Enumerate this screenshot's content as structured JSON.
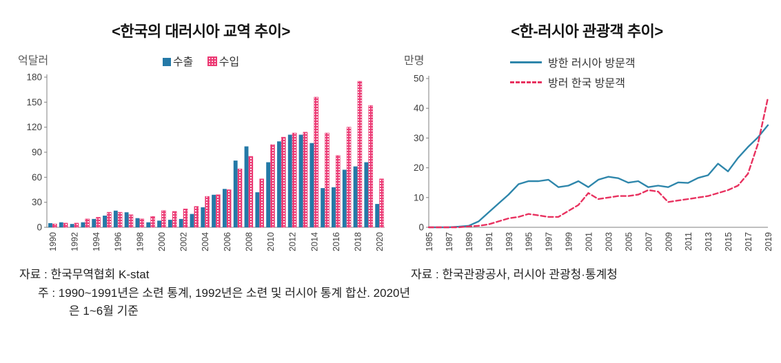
{
  "accent_colors": {
    "export_blue": "#2479a7",
    "import_pink": "#ec3a74",
    "line_blue": "#2e86ab",
    "line_pink": "#e8315f"
  },
  "chart_data": [
    {
      "type": "bar",
      "title": "<한국의 대러시아 교역 추이>",
      "unit": "억달러",
      "xlabel": "",
      "ylabel": "억달러",
      "ylim": [
        0,
        180
      ],
      "yticks": [
        0,
        30,
        60,
        90,
        120,
        150,
        180
      ],
      "grid": false,
      "legend_position": "top-center",
      "categories": [
        "1990",
        "1991",
        "1992",
        "1993",
        "1994",
        "1995",
        "1996",
        "1997",
        "1998",
        "1999",
        "2000",
        "2001",
        "2002",
        "2003",
        "2004",
        "2005",
        "2006",
        "2007",
        "2008",
        "2009",
        "2010",
        "2011",
        "2012",
        "2013",
        "2014",
        "2015",
        "2016",
        "2017",
        "2018",
        "2019",
        "2020"
      ],
      "xtick_labels": [
        "1990",
        "1992",
        "1994",
        "1996",
        "1998",
        "2000",
        "2002",
        "2004",
        "2006",
        "2008",
        "2010",
        "2012",
        "2014",
        "2016",
        "2018",
        "2020"
      ],
      "series": [
        {
          "name": "수출",
          "color": "#2479a7",
          "pattern": "solid",
          "values": [
            5,
            6,
            4,
            6,
            10,
            14,
            20,
            18,
            11,
            6,
            8,
            9,
            10,
            16,
            24,
            39,
            46,
            80,
            97,
            42,
            78,
            103,
            111,
            111,
            101,
            47,
            48,
            69,
            73,
            78,
            28
          ]
        },
        {
          "name": "수입",
          "color": "#ec3a74",
          "pattern": "dotted",
          "values": [
            4,
            5,
            5,
            10,
            12,
            18,
            18,
            15,
            10,
            13,
            20,
            19,
            22,
            25,
            37,
            39,
            45,
            70,
            85,
            58,
            99,
            108,
            113,
            114,
            156,
            113,
            86,
            120,
            175,
            146,
            58
          ]
        }
      ],
      "source": "자료 : 한국무역협회 K-stat",
      "note": "주 : 1990~1991년은 소련 통계, 1992년은 소련 및 러시아 통계 합산. 2020년은 1~6월 기준"
    },
    {
      "type": "line",
      "title": "<한-러시아 관광객 추이>",
      "unit": "만명",
      "xlabel": "",
      "ylabel": "만명",
      "ylim": [
        0,
        50
      ],
      "yticks": [
        0,
        10,
        20,
        30,
        40,
        50
      ],
      "grid": false,
      "legend_position": "top-center",
      "categories": [
        "1985",
        "1986",
        "1987",
        "1988",
        "1989",
        "1990",
        "1991",
        "1992",
        "1993",
        "1994",
        "1995",
        "1996",
        "1997",
        "1998",
        "1999",
        "2000",
        "2001",
        "2002",
        "2003",
        "2004",
        "2005",
        "2006",
        "2007",
        "2008",
        "2009",
        "2010",
        "2011",
        "2012",
        "2013",
        "2014",
        "2015",
        "2016",
        "2017",
        "2018",
        "2019"
      ],
      "xtick_labels": [
        "1985",
        "1987",
        "1989",
        "1991",
        "1993",
        "1995",
        "1997",
        "1999",
        "2001",
        "2003",
        "2005",
        "2007",
        "2009",
        "2011",
        "2013",
        "2015",
        "2017",
        "2019"
      ],
      "series": [
        {
          "name": "방한 러시아 방문객",
          "color": "#2e86ab",
          "style": "solid",
          "values": [
            0,
            0,
            0,
            0.2,
            0.5,
            2,
            5,
            8,
            11,
            14.5,
            15.5,
            15.5,
            16,
            13.5,
            14,
            15.5,
            13.5,
            16,
            17,
            16.5,
            15,
            15.5,
            13.5,
            14,
            13.5,
            15.1,
            14.9,
            16.6,
            17.5,
            21.4,
            18.8,
            23.3,
            27,
            30.2,
            34.3
          ]
        },
        {
          "name": "방러 한국 방문객",
          "color": "#e8315f",
          "style": "dashed",
          "values": [
            0,
            0,
            0,
            0,
            0.3,
            0.5,
            1,
            2,
            3,
            3.5,
            4.5,
            4,
            3.5,
            3.5,
            5.5,
            7.5,
            11.5,
            9.5,
            10,
            10.5,
            10.5,
            11,
            12.5,
            12,
            8.5,
            9,
            9.5,
            10,
            10.5,
            11.5,
            12.5,
            14,
            18,
            28,
            43.5
          ]
        }
      ],
      "source": "자료 : 한국관광공사, 러시아 관광청·통계청"
    }
  ]
}
